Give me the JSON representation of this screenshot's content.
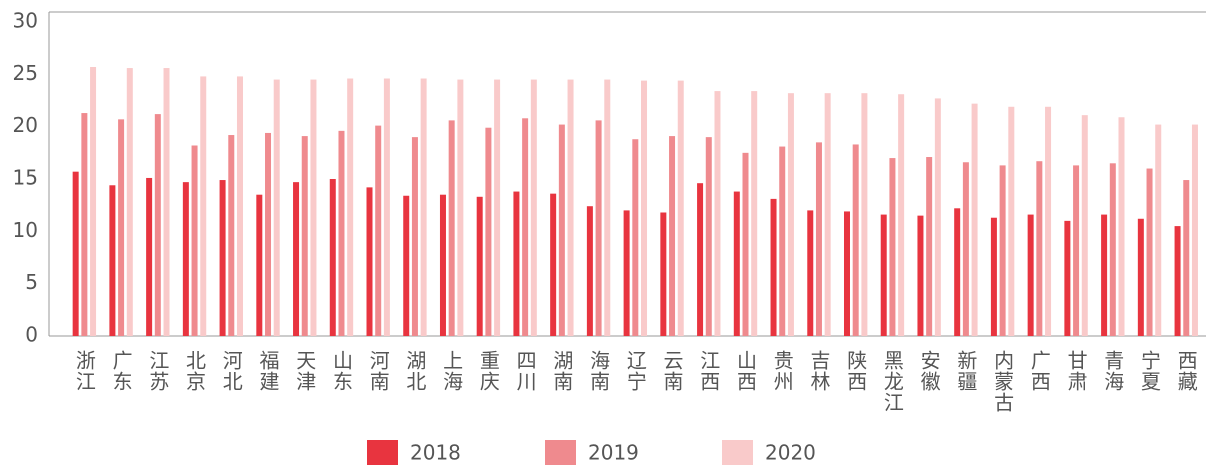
{
  "chart_data": {
    "type": "bar",
    "categories": [
      "浙江",
      "广东",
      "江苏",
      "北京",
      "河北",
      "福建",
      "天津",
      "山东",
      "河南",
      "湖北",
      "上海",
      "重庆",
      "四川",
      "湖南",
      "海南",
      "辽宁",
      "云南",
      "江西",
      "山西",
      "贵州",
      "吉林",
      "陕西",
      "黑龙江",
      "安徽",
      "新疆",
      "内蒙古",
      "广西",
      "甘肃",
      "青海",
      "宁夏",
      "西藏"
    ],
    "series": [
      {
        "name": "2018",
        "color": "#e8343f",
        "values": [
          15.7,
          14.4,
          15.1,
          14.7,
          14.9,
          13.5,
          14.7,
          15.0,
          14.2,
          13.4,
          13.5,
          13.3,
          13.8,
          13.6,
          12.4,
          12.0,
          11.8,
          14.6,
          13.8,
          13.1,
          12.0,
          11.9,
          11.6,
          11.5,
          12.2,
          11.3,
          11.6,
          11.0,
          11.6,
          11.2,
          10.5
        ]
      },
      {
        "name": "2019",
        "color": "#ef8a8e",
        "values": [
          21.3,
          20.7,
          21.2,
          18.2,
          19.2,
          19.4,
          19.1,
          19.6,
          20.1,
          19.0,
          20.6,
          19.9,
          20.8,
          20.2,
          20.6,
          18.8,
          19.1,
          19.0,
          17.5,
          18.1,
          18.5,
          18.3,
          17.0,
          17.1,
          16.6,
          16.3,
          16.7,
          16.3,
          16.5,
          16.0,
          14.9
        ]
      },
      {
        "name": "2020",
        "color": "#f9caca",
        "values": [
          25.7,
          25.6,
          25.6,
          24.8,
          24.8,
          24.5,
          24.5,
          24.6,
          24.6,
          24.6,
          24.5,
          24.5,
          24.5,
          24.5,
          24.5,
          24.4,
          24.4,
          23.4,
          23.4,
          23.2,
          23.2,
          23.2,
          23.1,
          22.7,
          22.2,
          21.9,
          21.9,
          21.1,
          20.9,
          20.2,
          20.2
        ]
      }
    ],
    "ylim": [
      0,
      30
    ],
    "yticks": [
      0,
      5,
      10,
      15,
      20,
      25,
      30
    ],
    "legend": "bottom"
  }
}
